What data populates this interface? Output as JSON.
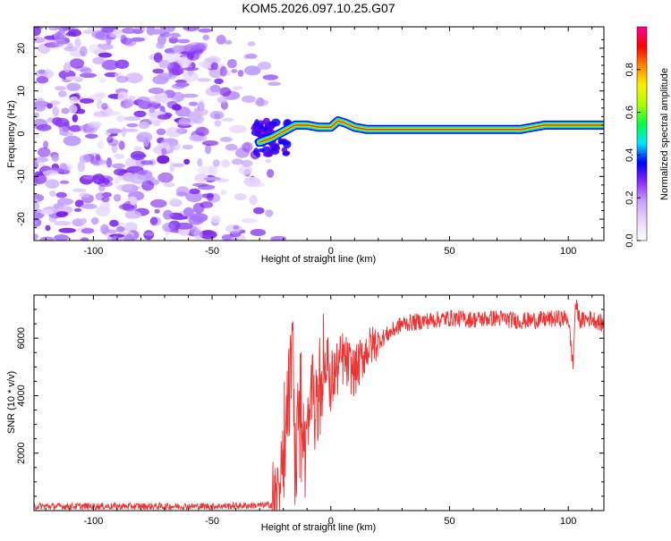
{
  "title": "KOM5.2026.097.10.25.G07",
  "chart_data": [
    {
      "type": "heatmap",
      "xlabel": "Height of straight line (km)",
      "ylabel": "Frequency (Hz)",
      "xlim": [
        -125,
        115
      ],
      "ylim": [
        -25,
        25
      ],
      "xticks": [
        -100,
        -50,
        0,
        50,
        100
      ],
      "yticks": [
        -20,
        -10,
        0,
        10,
        20
      ],
      "xtick_labels": [
        "-100",
        "-50",
        "0",
        "50",
        "100"
      ],
      "ytick_labels": [
        "-20",
        "-10",
        "0",
        "10",
        "20"
      ],
      "colorbar": {
        "label": "Normalized spectral amplitude",
        "range": [
          0.0,
          1.0
        ],
        "ticks": [
          0.0,
          0.2,
          0.4,
          0.6,
          0.8
        ],
        "tick_labels": [
          "0.0",
          "0.2",
          "0.4",
          "0.6",
          "0.8"
        ],
        "colors": [
          "#ffffff",
          "#e8d6ff",
          "#c9a4ff",
          "#8b2bff",
          "#0000ff",
          "#00e5ff",
          "#00ff44",
          "#a8ff00",
          "#ffee00",
          "#ff8800",
          "#ff0000",
          "#ff0099"
        ]
      },
      "ridge": {
        "x": [
          -30,
          -25,
          -20,
          -15,
          -10,
          -5,
          0,
          3,
          6,
          10,
          15,
          20,
          40,
          60,
          80,
          90,
          100,
          115
        ],
        "frequency": [
          -2,
          -1,
          0.5,
          2,
          2,
          1.5,
          1.5,
          3,
          2.5,
          1.5,
          1,
          1,
          1,
          1,
          1,
          2,
          2,
          2
        ]
      },
      "noise_region_x": [
        -125,
        -18
      ]
    },
    {
      "type": "line",
      "xlabel": "Height of straight line (km)",
      "ylabel": "SNR (10 * v/v)",
      "xlim": [
        -125,
        115
      ],
      "ylim": [
        0,
        7500
      ],
      "xticks": [
        -100,
        -50,
        0,
        50,
        100
      ],
      "yticks": [
        2000,
        4000,
        6000
      ],
      "xtick_labels": [
        "-100",
        "-50",
        "0",
        "50",
        "100"
      ],
      "ytick_labels": [
        "2000",
        "4000",
        "6000"
      ],
      "color": "#ee3333",
      "series": [
        {
          "name": "SNR",
          "x": [
            -125,
            -100,
            -75,
            -50,
            -30,
            -25,
            -22,
            -20,
            -18,
            -16,
            -15,
            -13,
            -10,
            -8,
            -5,
            -2,
            0,
            5,
            10,
            15,
            20,
            25,
            30,
            40,
            50,
            60,
            70,
            80,
            90,
            100,
            102,
            103,
            105,
            110,
            115
          ],
          "y": [
            150,
            150,
            150,
            150,
            180,
            200,
            400,
            1500,
            4000,
            5800,
            1800,
            3500,
            2300,
            4200,
            3500,
            5200,
            4500,
            5300,
            4800,
            5600,
            5900,
            6200,
            6500,
            6600,
            6700,
            6650,
            6700,
            6600,
            6650,
            6700,
            5000,
            7200,
            6600,
            6700,
            6450
          ]
        }
      ]
    }
  ]
}
